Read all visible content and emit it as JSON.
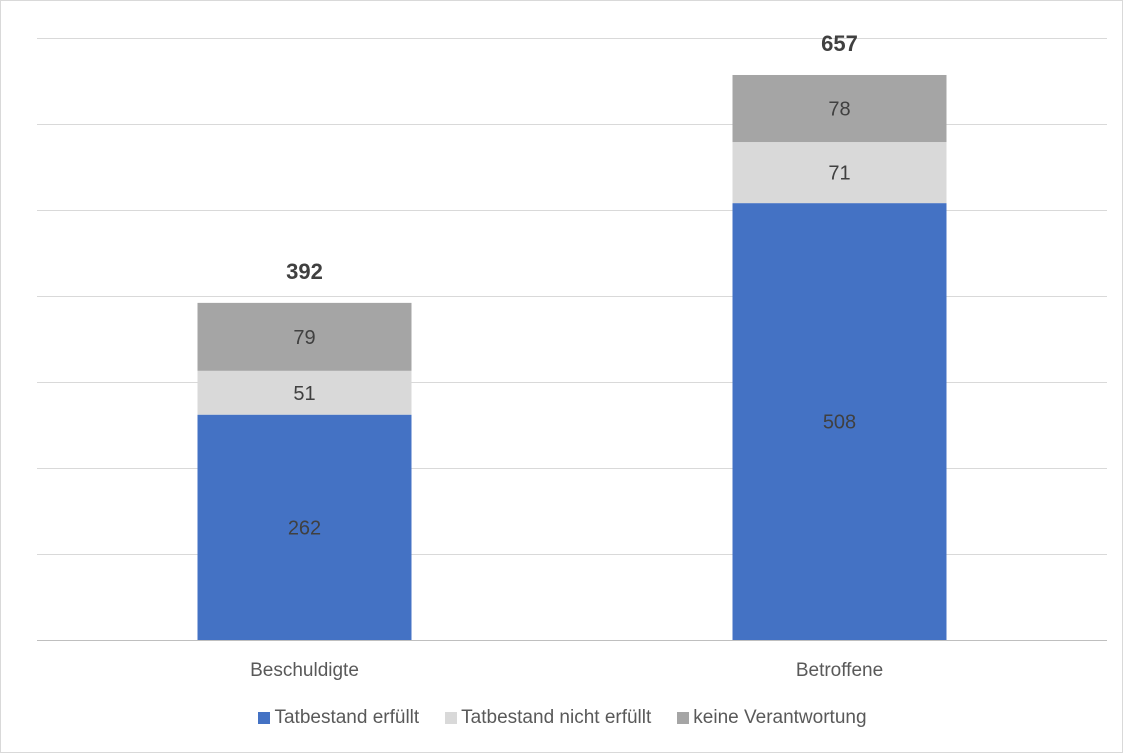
{
  "chart_data": {
    "type": "bar",
    "stacked": true,
    "categories": [
      "Beschuldigte",
      "Betroffene"
    ],
    "series": [
      {
        "name": "Tatbestand erfüllt",
        "values": [
          262,
          508
        ],
        "color": "#4472C4"
      },
      {
        "name": "Tatbestand nicht erfüllt",
        "values": [
          51,
          71
        ],
        "color": "#D9D9D9"
      },
      {
        "name": "keine Verantwortung",
        "values": [
          79,
          78
        ],
        "color": "#A5A5A5"
      }
    ],
    "totals": [
      392,
      657
    ],
    "title": "",
    "xlabel": "",
    "ylabel": "",
    "ylim": [
      0,
      700
    ],
    "grid": true,
    "legend": "bottom"
  }
}
